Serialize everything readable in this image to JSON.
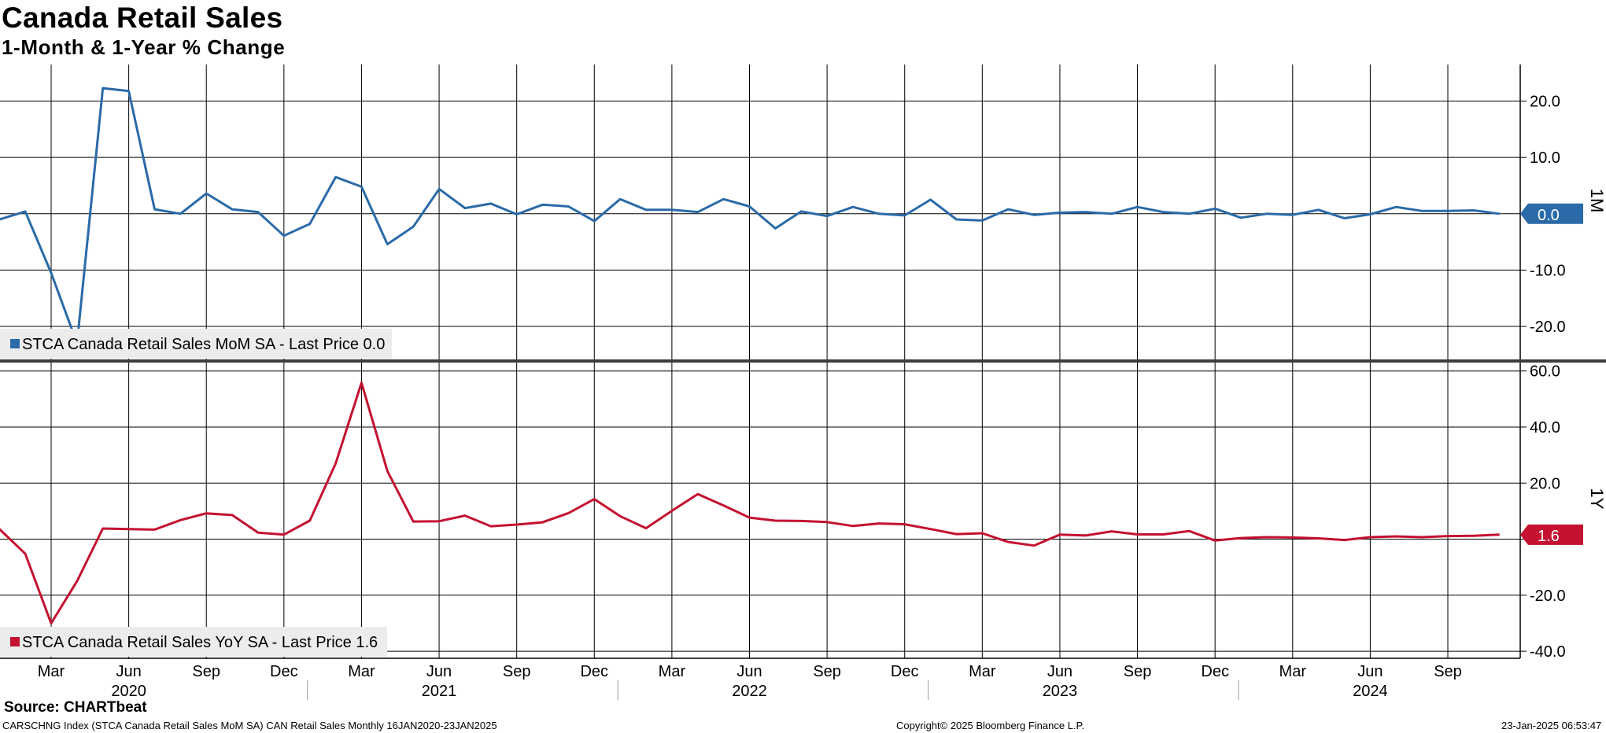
{
  "header": {
    "title": "Canada Retail Sales",
    "subtitle": "1-Month & 1-Year % Change"
  },
  "footer": {
    "source": "Source: CHARTbeat",
    "index_info": "CARSCHNG Index (STCA Canada Retail Sales MoM SA) CAN Retail Sales  Monthly 16JAN2020-23JAN2025",
    "copyright": "Copyright© 2025 Bloomberg Finance L.P.",
    "timestamp": "23-Jan-2025 06:53:47"
  },
  "chart_data": [
    {
      "type": "line",
      "panel_label": "1M",
      "legend": "STCA Canada Retail Sales MoM SA - Last Price 0.0",
      "last_value_label": "0.0",
      "color": "#2a6aa8",
      "ylim": [
        -26,
        26.5
      ],
      "yticks": [
        20.0,
        10.0,
        0,
        -10.0,
        -20.0
      ],
      "ytick_labels": [
        "20.0",
        "10.0",
        "0",
        "-10.0",
        "-20.0"
      ],
      "grid": true,
      "x": [
        "2020-01",
        "2020-02",
        "2020-03",
        "2020-04",
        "2020-05",
        "2020-06",
        "2020-07",
        "2020-08",
        "2020-09",
        "2020-10",
        "2020-11",
        "2020-12",
        "2021-01",
        "2021-02",
        "2021-03",
        "2021-04",
        "2021-05",
        "2021-06",
        "2021-07",
        "2021-08",
        "2021-09",
        "2021-10",
        "2021-11",
        "2021-12",
        "2022-01",
        "2022-02",
        "2022-03",
        "2022-04",
        "2022-05",
        "2022-06",
        "2022-07",
        "2022-08",
        "2022-09",
        "2022-10",
        "2022-11",
        "2022-12",
        "2023-01",
        "2023-02",
        "2023-03",
        "2023-04",
        "2023-05",
        "2023-06",
        "2023-07",
        "2023-08",
        "2023-09",
        "2023-10",
        "2023-11",
        "2023-12",
        "2024-01",
        "2024-02",
        "2024-03",
        "2024-04",
        "2024-05",
        "2024-06",
        "2024-07",
        "2024-08",
        "2024-09",
        "2024-10",
        "2024-11"
      ],
      "values": [
        -1.0,
        0.4,
        -10.5,
        -23.0,
        22.3,
        21.8,
        0.8,
        0.0,
        3.6,
        0.8,
        0.3,
        -3.9,
        -1.8,
        6.5,
        4.8,
        -5.4,
        -2.3,
        4.4,
        1.0,
        1.8,
        -0.1,
        1.6,
        1.3,
        -1.3,
        2.6,
        0.7,
        0.7,
        0.3,
        2.6,
        1.3,
        -2.6,
        0.4,
        -0.4,
        1.2,
        0.0,
        -0.3,
        2.5,
        -1.0,
        -1.2,
        0.8,
        -0.2,
        0.2,
        0.3,
        0.0,
        1.2,
        0.3,
        0.0,
        0.9,
        -0.7,
        0.0,
        -0.2,
        0.7,
        -0.8,
        -0.1,
        1.2,
        0.5,
        0.5,
        0.6,
        0.0
      ]
    },
    {
      "type": "line",
      "panel_label": "1Y",
      "legend": "STCA Canada Retail Sales YoY SA - Last Price 1.6",
      "last_value_label": "1.6",
      "color": "#c41230",
      "ylim": [
        -42.5,
        63
      ],
      "yticks": [
        60.0,
        40.0,
        20.0,
        0,
        -20.0,
        -40.0
      ],
      "ytick_labels": [
        "60.0",
        "40.0",
        "20.0",
        "0",
        "-20.0",
        "-40.0"
      ],
      "grid": true,
      "x": [
        "2019-12",
        "2020-01",
        "2020-02",
        "2020-03",
        "2020-04",
        "2020-05",
        "2020-06",
        "2020-07",
        "2020-08",
        "2020-09",
        "2020-10",
        "2020-11",
        "2020-12",
        "2021-01",
        "2021-02",
        "2021-03",
        "2021-04",
        "2021-05",
        "2021-06",
        "2021-07",
        "2021-08",
        "2021-09",
        "2021-10",
        "2021-11",
        "2021-12",
        "2022-01",
        "2022-02",
        "2022-03",
        "2022-04",
        "2022-05",
        "2022-06",
        "2022-07",
        "2022-08",
        "2022-09",
        "2022-10",
        "2022-11",
        "2022-12",
        "2023-01",
        "2023-02",
        "2023-03",
        "2023-04",
        "2023-05",
        "2023-06",
        "2023-07",
        "2023-08",
        "2023-09",
        "2023-10",
        "2023-11",
        "2023-12",
        "2024-01",
        "2024-02",
        "2024-03",
        "2024-04",
        "2024-05",
        "2024-06",
        "2024-07",
        "2024-08",
        "2024-09",
        "2024-10",
        "2024-11"
      ],
      "values": [
        3.6,
        3.6,
        -5.2,
        -30.0,
        -15.0,
        3.8,
        3.6,
        3.4,
        6.8,
        9.2,
        8.6,
        2.3,
        1.6,
        6.6,
        27.0,
        55.8,
        24.3,
        6.3,
        6.4,
        8.4,
        4.6,
        5.2,
        6.0,
        9.3,
        14.3,
        8.2,
        3.9,
        10.1,
        16.1,
        12.0,
        7.7,
        6.6,
        6.5,
        6.1,
        4.7,
        5.6,
        5.3,
        3.6,
        1.8,
        2.1,
        -1.0,
        -2.3,
        1.6,
        1.3,
        2.8,
        1.7,
        1.7,
        2.9,
        -0.5,
        0.4,
        0.7,
        0.6,
        0.3,
        -0.3,
        0.7,
        1.0,
        0.7,
        1.1,
        1.2,
        1.6
      ]
    }
  ],
  "x_axis": {
    "month_labels": [
      "Mar",
      "Jun",
      "Sep",
      "Dec",
      "Mar",
      "Jun",
      "Sep",
      "Dec",
      "Mar",
      "Jun",
      "Sep",
      "Dec",
      "Mar",
      "Jun",
      "Sep",
      "Dec",
      "Mar",
      "Jun",
      "Sep"
    ],
    "month_dates": [
      "2020-03",
      "2020-06",
      "2020-09",
      "2020-12",
      "2021-03",
      "2021-06",
      "2021-09",
      "2021-12",
      "2022-03",
      "2022-06",
      "2022-09",
      "2022-12",
      "2023-03",
      "2023-06",
      "2023-09",
      "2023-12",
      "2024-03",
      "2024-06",
      "2024-09"
    ],
    "year_labels": [
      "2020",
      "2021",
      "2022",
      "2023",
      "2024"
    ],
    "year_dates": [
      "2020-06",
      "2021-06",
      "2022-06",
      "2023-06",
      "2024-06"
    ]
  }
}
